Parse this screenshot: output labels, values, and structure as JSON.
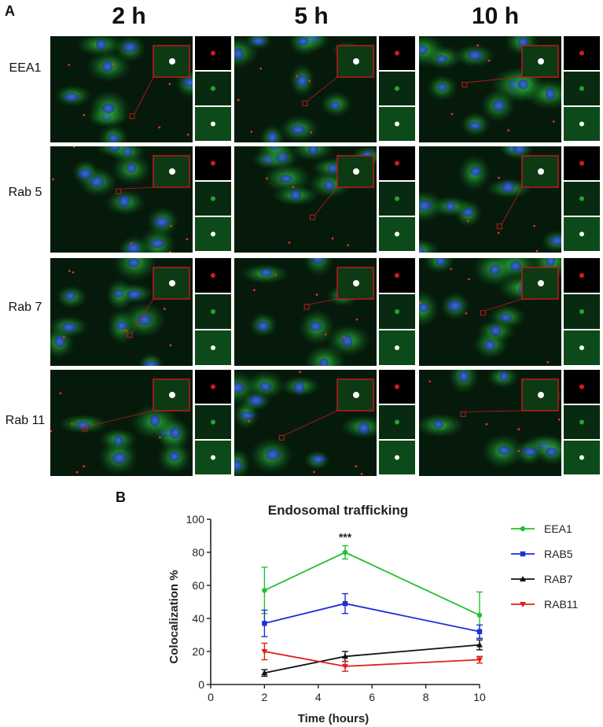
{
  "panel_a": {
    "letter": "A",
    "columns": [
      "2 h",
      "5 h",
      "10 h"
    ],
    "rows": [
      "EEA1",
      "Rab 5",
      "Rab 7",
      "Rab 11"
    ]
  },
  "panel_b": {
    "letter": "B"
  },
  "colors": {
    "EEA1": "#22c22e",
    "RAB5": "#1d2fd6",
    "RAB7": "#111111",
    "RAB11": "#e0201a"
  },
  "chart_data": {
    "type": "line",
    "title": "Endosomal trafficking",
    "xlabel": "Time (hours)",
    "ylabel": "Colocalization %",
    "xlim": [
      0,
      10
    ],
    "ylim": [
      0,
      100
    ],
    "xticks": [
      0,
      2,
      4,
      6,
      8,
      10
    ],
    "yticks": [
      0,
      20,
      40,
      60,
      80,
      100
    ],
    "x": [
      2,
      5,
      10
    ],
    "series": [
      {
        "name": "EEA1",
        "values": [
          57,
          80,
          42
        ],
        "errors": [
          14,
          4,
          14
        ],
        "marker": "circle"
      },
      {
        "name": "RAB5",
        "values": [
          37,
          49,
          32
        ],
        "errors": [
          8,
          6,
          4
        ],
        "marker": "square"
      },
      {
        "name": "RAB7",
        "values": [
          7,
          17,
          24
        ],
        "errors": [
          2,
          3,
          3
        ],
        "marker": "triangle-up"
      },
      {
        "name": "RAB11",
        "values": [
          20,
          11,
          15
        ],
        "errors": [
          5,
          3,
          2
        ],
        "marker": "triangle-down"
      }
    ],
    "annotations": [
      {
        "x": 5,
        "text": "***"
      }
    ],
    "legend": "right",
    "grid": false
  }
}
